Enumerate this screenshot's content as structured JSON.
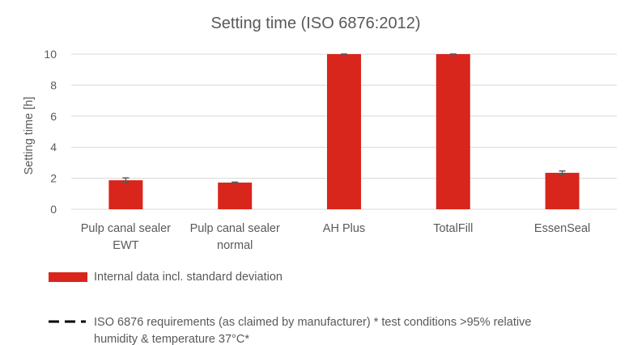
{
  "chart_data": {
    "type": "bar",
    "title": "Setting time (ISO 6876:2012)",
    "xlabel": "",
    "ylabel": "Setting time [h]",
    "ylim": [
      0,
      10
    ],
    "yticks": [
      0,
      2,
      4,
      6,
      8,
      10
    ],
    "grid": true,
    "categories": [
      [
        "Pulp canal sealer",
        "EWT"
      ],
      [
        "Pulp canal sealer",
        "normal"
      ],
      [
        "AH Plus"
      ],
      [
        "TotalFill"
      ],
      [
        "EssenSeal"
      ]
    ],
    "series": [
      {
        "name": "Internal data incl. standard deviation",
        "color": "#d9261c",
        "values": [
          1.87,
          1.72,
          10,
          10,
          2.35
        ],
        "error": [
          0.15,
          0.03,
          0,
          0,
          0.12
        ]
      }
    ],
    "legend": {
      "placement": "bottom",
      "items": [
        {
          "type": "bar",
          "label": "Internal data incl. standard deviation",
          "color": "#d9261c"
        },
        {
          "type": "dashed-line",
          "label_lines": [
            "ISO 6876 requirements (as claimed by manufacturer) * test conditions >95% relative",
            "humidity & temperature 37°C*"
          ],
          "color": "#000000"
        }
      ]
    },
    "colors": {
      "text": "#595959",
      "grid": "#d9d9d9",
      "error_bar": "#595959"
    }
  }
}
